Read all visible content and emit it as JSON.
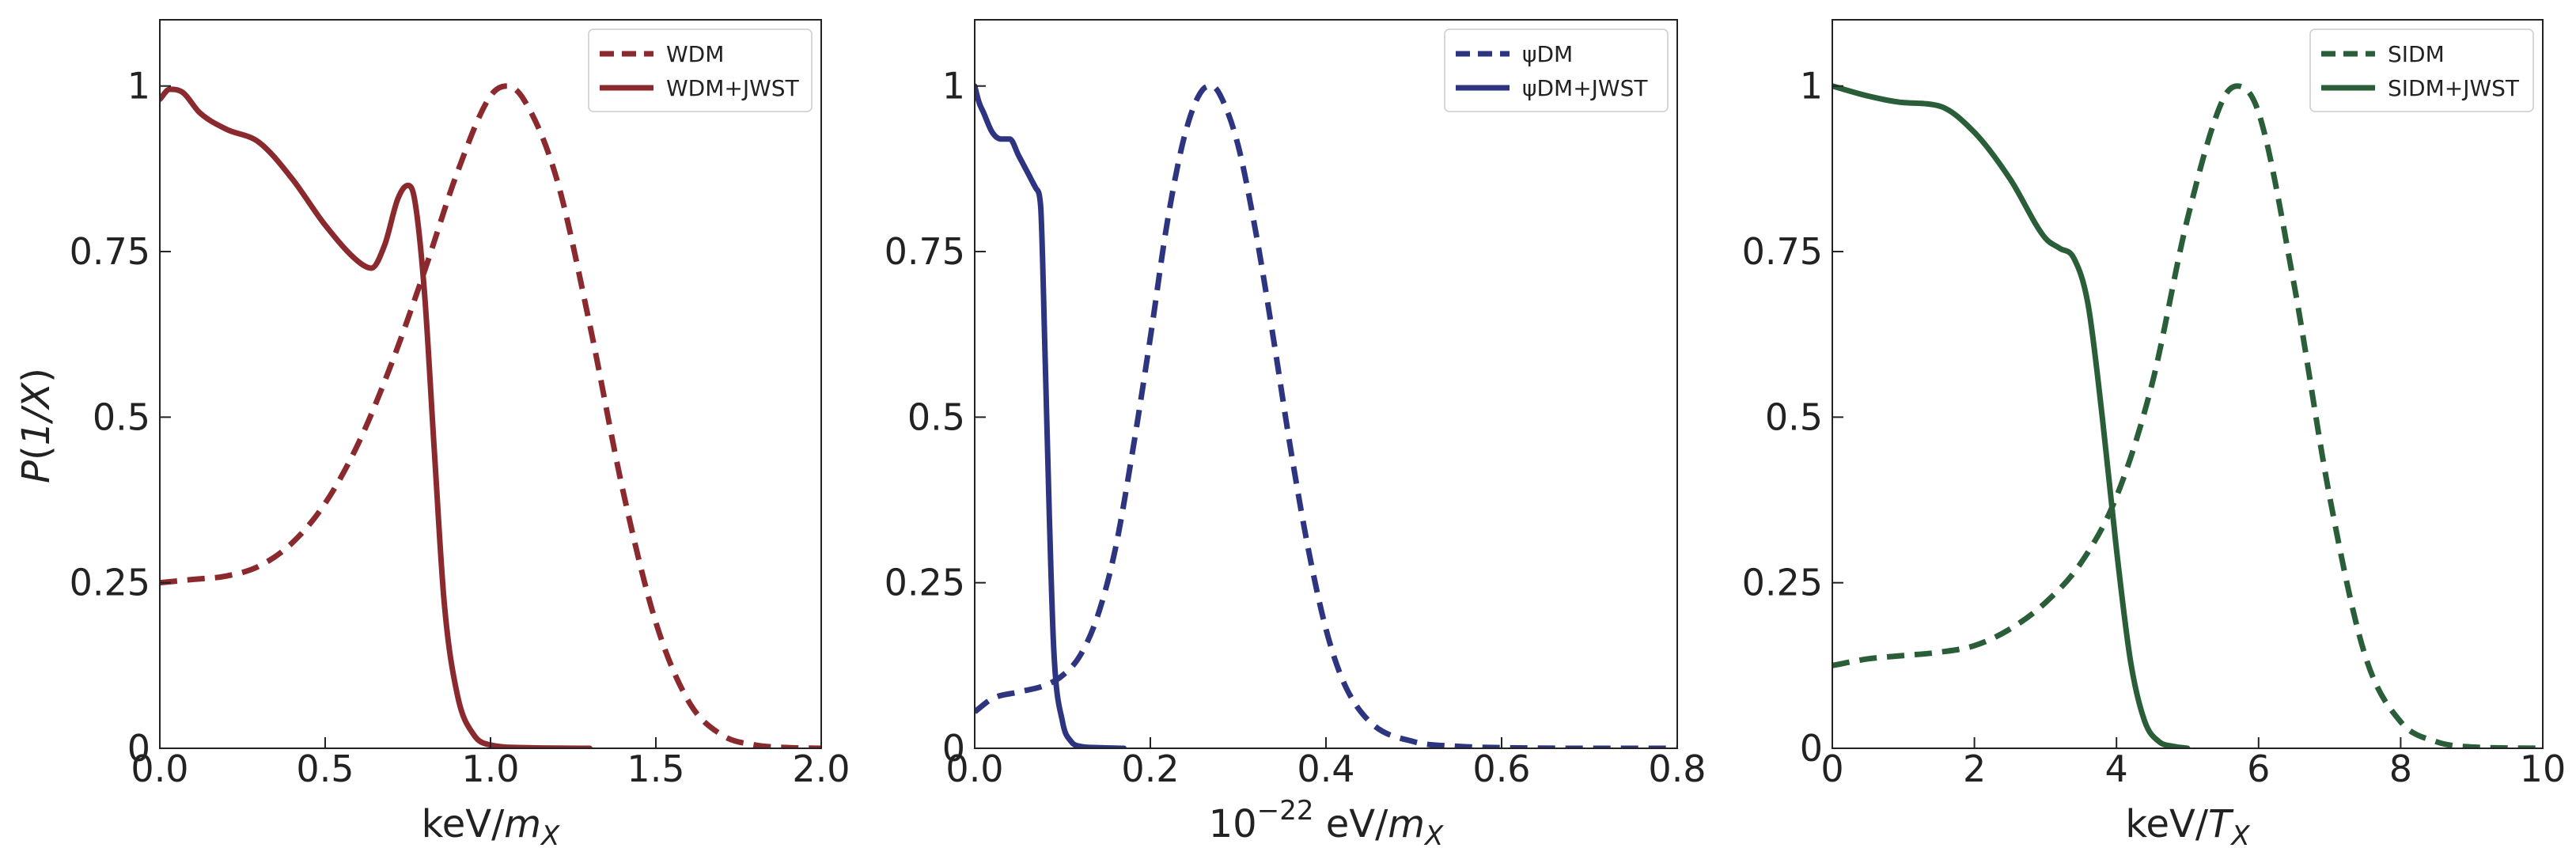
{
  "chart_data": [
    {
      "type": "line",
      "ylabel_main": "P(1/X)",
      "ylabel_paren": "1/X",
      "xlabel_prefix": "keV/",
      "xlabel_var": "m",
      "xlabel_sub": "X",
      "xlim": [
        0,
        2.0
      ],
      "ylim": [
        0,
        1.1
      ],
      "xticks": [
        0,
        0.5,
        1.0,
        1.5,
        2.0
      ],
      "xtick_labels": [
        "0.0",
        "0.5",
        "1.0",
        "1.5",
        "2.0"
      ],
      "yticks": [
        0,
        0.25,
        0.5,
        0.75,
        1
      ],
      "ytick_labels": [
        "0",
        "0.25",
        "0.5",
        "0.75",
        "1"
      ],
      "color": "#8b2a2e",
      "legend_position": "top-right",
      "series": [
        {
          "name": "WDM",
          "style": "dashed",
          "x": [
            0,
            0.1,
            0.2,
            0.3,
            0.4,
            0.5,
            0.6,
            0.7,
            0.8,
            0.9,
            1.0,
            1.05,
            1.1,
            1.2,
            1.3,
            1.4,
            1.5,
            1.6,
            1.7,
            1.8,
            1.9,
            2.0
          ],
          "y": [
            0.25,
            0.255,
            0.26,
            0.275,
            0.31,
            0.37,
            0.46,
            0.58,
            0.72,
            0.87,
            0.985,
            1.0,
            0.98,
            0.86,
            0.64,
            0.39,
            0.19,
            0.07,
            0.02,
            0.005,
            0.001,
            0
          ]
        },
        {
          "name": "WDM+JWST",
          "style": "solid",
          "x": [
            0,
            0.03,
            0.07,
            0.12,
            0.2,
            0.3,
            0.4,
            0.5,
            0.6,
            0.64,
            0.68,
            0.72,
            0.75,
            0.77,
            0.8,
            0.83,
            0.86,
            0.9,
            0.95,
            1.0,
            1.1,
            1.3
          ],
          "y": [
            0.98,
            0.995,
            0.99,
            0.96,
            0.935,
            0.915,
            0.86,
            0.79,
            0.735,
            0.725,
            0.76,
            0.83,
            0.85,
            0.83,
            0.69,
            0.45,
            0.22,
            0.08,
            0.02,
            0.005,
            0.001,
            0
          ]
        }
      ]
    },
    {
      "type": "line",
      "xlabel_prefix": "10",
      "xlabel_exp": "−22",
      "xlabel_mid": " eV/",
      "xlabel_var": "m",
      "xlabel_sub": "X",
      "xlim": [
        0,
        0.8
      ],
      "ylim": [
        0,
        1.1
      ],
      "xticks": [
        0,
        0.2,
        0.4,
        0.6,
        0.8
      ],
      "xtick_labels": [
        "0.0",
        "0.2",
        "0.4",
        "0.6",
        "0.8"
      ],
      "yticks": [
        0,
        0.25,
        0.5,
        0.75,
        1
      ],
      "ytick_labels": [
        "0",
        "0.25",
        "0.5",
        "0.75",
        "1"
      ],
      "color": "#2e3580",
      "legend_position": "top-right",
      "series": [
        {
          "name": "ψDM",
          "style": "dashed",
          "x": [
            0,
            0.02,
            0.05,
            0.08,
            0.1,
            0.12,
            0.14,
            0.16,
            0.18,
            0.2,
            0.22,
            0.24,
            0.26,
            0.27,
            0.28,
            0.3,
            0.32,
            0.34,
            0.36,
            0.38,
            0.4,
            0.42,
            0.45,
            0.5,
            0.55,
            0.6,
            0.7,
            0.8
          ],
          "y": [
            0.055,
            0.075,
            0.085,
            0.095,
            0.11,
            0.14,
            0.2,
            0.3,
            0.45,
            0.62,
            0.8,
            0.93,
            0.995,
            1.0,
            0.985,
            0.91,
            0.78,
            0.62,
            0.45,
            0.3,
            0.18,
            0.1,
            0.04,
            0.01,
            0.003,
            0.001,
            0,
            0
          ]
        },
        {
          "name": "ψDM+JWST",
          "style": "solid",
          "x": [
            0,
            0.005,
            0.01,
            0.02,
            0.03,
            0.04,
            0.05,
            0.06,
            0.07,
            0.075,
            0.08,
            0.085,
            0.09,
            0.1,
            0.11,
            0.12,
            0.14,
            0.17
          ],
          "y": [
            1.0,
            0.975,
            0.96,
            0.93,
            0.92,
            0.92,
            0.895,
            0.87,
            0.845,
            0.82,
            0.6,
            0.35,
            0.15,
            0.04,
            0.01,
            0.003,
            0.001,
            0
          ]
        }
      ]
    },
    {
      "type": "line",
      "xlabel_prefix": "keV/",
      "xlabel_var": "T",
      "xlabel_sub": "X",
      "xlim": [
        0,
        10
      ],
      "ylim": [
        0,
        1.1
      ],
      "xticks": [
        0,
        2,
        4,
        6,
        8,
        10
      ],
      "xtick_labels": [
        "0",
        "2",
        "4",
        "6",
        "8",
        "10"
      ],
      "yticks": [
        0,
        0.25,
        0.5,
        0.75,
        1
      ],
      "ytick_labels": [
        "0",
        "0.25",
        "0.5",
        "0.75",
        "1"
      ],
      "color": "#2a5e38",
      "legend_position": "top-right",
      "series": [
        {
          "name": "SIDM",
          "style": "dashed",
          "x": [
            0,
            0.5,
            1,
            1.5,
            2,
            2.5,
            3,
            3.5,
            4,
            4.5,
            5,
            5.5,
            5.7,
            6,
            6.5,
            7,
            7.5,
            8,
            8.5,
            9,
            10
          ],
          "y": [
            0.125,
            0.135,
            0.14,
            0.145,
            0.155,
            0.18,
            0.22,
            0.28,
            0.38,
            0.55,
            0.8,
            0.98,
            1.0,
            0.96,
            0.7,
            0.38,
            0.14,
            0.04,
            0.01,
            0.002,
            0
          ]
        },
        {
          "name": "SIDM+JWST",
          "style": "solid",
          "x": [
            0,
            0.5,
            1,
            1.5,
            2,
            2.5,
            3,
            3.2,
            3.4,
            3.6,
            3.8,
            4,
            4.2,
            4.4,
            4.6,
            4.8,
            5
          ],
          "y": [
            1.0,
            0.985,
            0.975,
            0.97,
            0.93,
            0.86,
            0.77,
            0.755,
            0.74,
            0.67,
            0.5,
            0.3,
            0.13,
            0.04,
            0.01,
            0.003,
            0
          ]
        }
      ]
    }
  ]
}
